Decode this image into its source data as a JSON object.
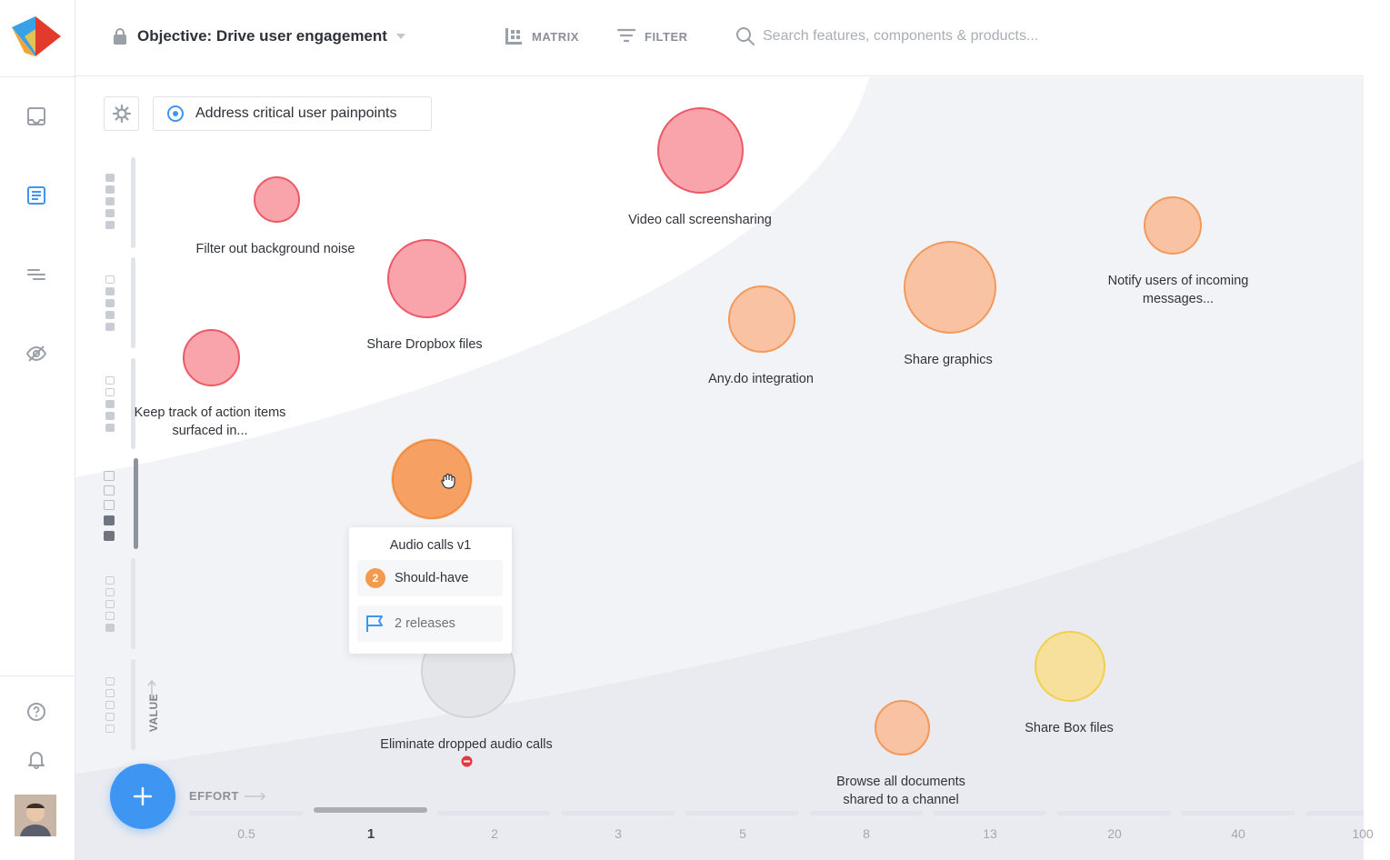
{
  "topbar": {
    "objective_title": "Objective: Drive user engagement",
    "matrix_label": "MATRIX",
    "filter_label": "FILTER",
    "search_placeholder": "Search features, components & products..."
  },
  "canvas": {
    "goal_chip_label": "Address critical user painpoints",
    "value_axis_label": "VALUE",
    "effort_axis_label": "EFFORT",
    "effort_ticks": [
      "0.5",
      "1",
      "2",
      "3",
      "5",
      "8",
      "13",
      "20",
      "40",
      "100"
    ],
    "effort_selected": "1",
    "value_level_selected": 4
  },
  "bubbles": [
    {
      "label": "Filter out background noise",
      "color": "red"
    },
    {
      "label": "Share Dropbox files",
      "color": "red"
    },
    {
      "label": "Keep track of action items surfaced in...",
      "color": "red"
    },
    {
      "label": "Video call screensharing",
      "color": "red"
    },
    {
      "label": "Any.do integration",
      "color": "peach"
    },
    {
      "label": "Share graphics",
      "color": "peach"
    },
    {
      "label": "Notify users of incoming messages...",
      "color": "peach"
    },
    {
      "label": "Audio calls v1",
      "color": "orange"
    },
    {
      "label": "Eliminate dropped audio calls",
      "color": "gray"
    },
    {
      "label": "Browse all documents shared to a channel",
      "color": "peach"
    },
    {
      "label": "Share Box files",
      "color": "yellow"
    }
  ],
  "tooltip": {
    "title": "Audio calls v1",
    "priority_number": "2",
    "priority_label": "Should-have",
    "releases_label": "2 releases"
  },
  "colors": {
    "accent": "#3e95f2",
    "red": "#f9a3aa",
    "peach": "#f8c2a3",
    "orange": "#f7a064",
    "yellow": "#f6e09b",
    "gray": "#e3e5e9"
  }
}
